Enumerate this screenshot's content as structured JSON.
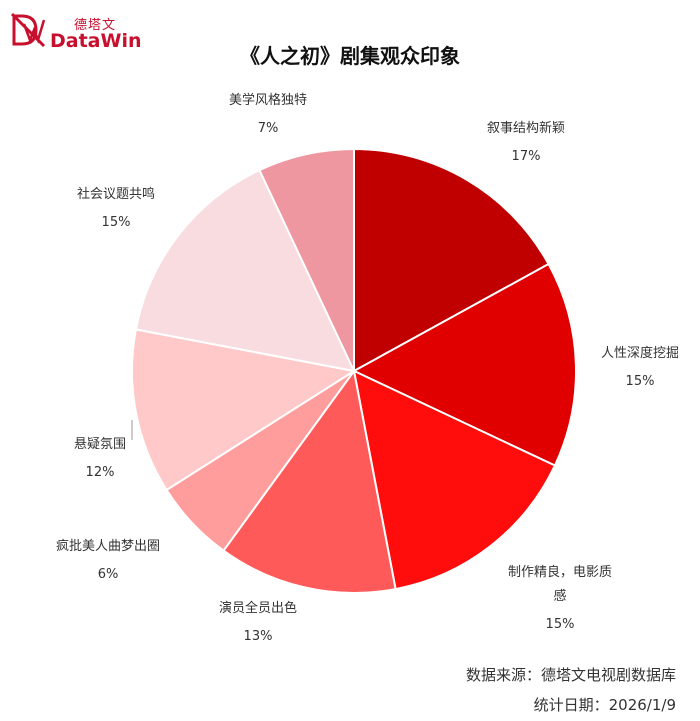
{
  "logo": {
    "cn": "德塔文",
    "en": "DataWin",
    "icon": "datawin-logo-icon"
  },
  "title": "《人之初》剧集观众印象",
  "chart_data": {
    "type": "pie",
    "title": "《人之初》剧集观众印象",
    "slices": [
      {
        "label": "叙事结构新颖",
        "value": 17,
        "pct": "17%",
        "color": "#c00000"
      },
      {
        "label": "人性深度挖掘",
        "value": 15,
        "pct": "15%",
        "color": "#e00000"
      },
      {
        "label": "制作精良，电影质感",
        "label_lines": [
          "制作精良，电影质",
          "感"
        ],
        "value": 15,
        "pct": "15%",
        "color": "#ff0c0c"
      },
      {
        "label": "演员全员出色",
        "value": 13,
        "pct": "13%",
        "color": "#ff5a5a"
      },
      {
        "label": "疯批美人曲梦出圈",
        "value": 6,
        "pct": "6%",
        "color": "#ff9c9c"
      },
      {
        "label": "悬疑氛围",
        "value": 12,
        "pct": "12%",
        "color": "#ffc9c9"
      },
      {
        "label": "社会议题共鸣",
        "value": 15,
        "pct": "15%",
        "color": "#f8dce0"
      },
      {
        "label": "美学风格独特",
        "value": 7,
        "pct": "7%",
        "color": "#ef97a1"
      }
    ]
  },
  "footer": {
    "source": "数据来源：德塔文电视剧数据库",
    "date": "统计日期：2026/1/9"
  }
}
